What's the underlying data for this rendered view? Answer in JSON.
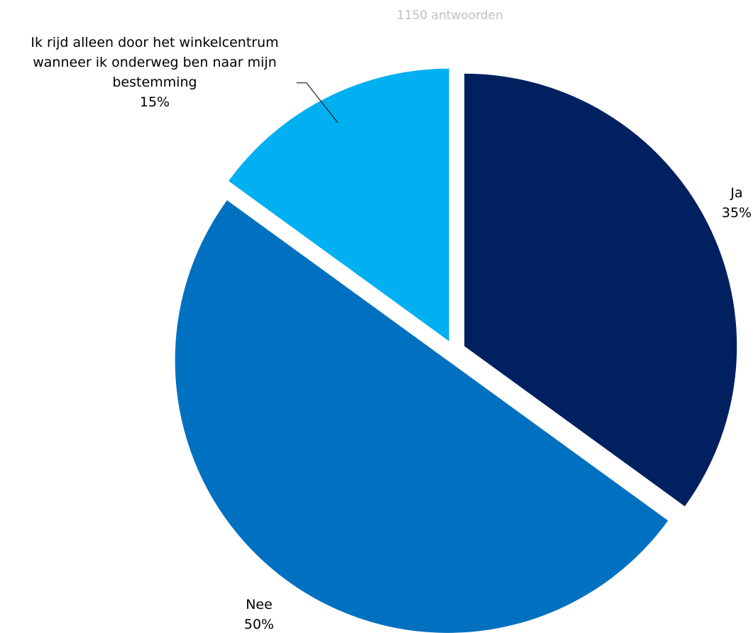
{
  "chart_data": {
    "type": "pie",
    "subtitle": "1150 antwoorden",
    "slices": [
      {
        "label": "Ja",
        "value": 35,
        "display": "35%",
        "color": "#002060"
      },
      {
        "label": "Nee",
        "value": 50,
        "display": "50%",
        "color": "#0070C0"
      },
      {
        "label": "Ik rijd alleen door het winkelcentrum wanneer ik onderweg ben naar mijn bestemming",
        "label_lines": [
          "Ik rijd alleen door het winkelcentrum",
          "wanneer ik onderweg ben naar mijn",
          "bestemming"
        ],
        "value": 15,
        "display": "15%",
        "color": "#00B0F0"
      }
    ],
    "start_angle": "12 o'clock",
    "direction": "clockwise",
    "exploded": true,
    "legend": "none"
  }
}
